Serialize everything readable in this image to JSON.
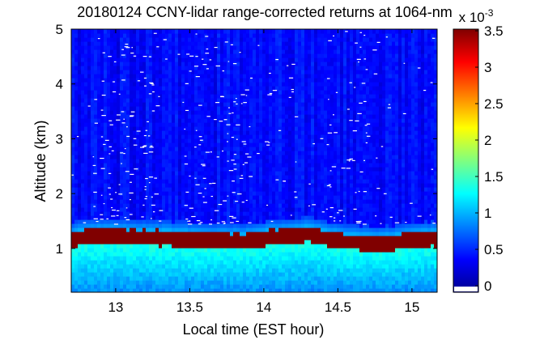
{
  "chart_data": {
    "type": "heatmap",
    "title": "20180124 CCNY-lidar range-corrected returns at 1064-nm",
    "xlabel": "Local time (EST hour)",
    "ylabel": "Altitude (km)",
    "xlim": [
      12.7,
      15.17
    ],
    "ylim": [
      0.2,
      5.0
    ],
    "xticks": [
      13,
      13.5,
      14,
      14.5,
      15
    ],
    "xtick_labels": [
      "13",
      "13.5",
      "14",
      "14.5",
      "15"
    ],
    "yticks": [
      1,
      2,
      3,
      4,
      5
    ],
    "ytick_labels": [
      "1",
      "2",
      "3",
      "4",
      "5"
    ],
    "colormap": "jet",
    "colorbar": {
      "min": 0,
      "max": 0.0035,
      "ticks": [
        0,
        0.5,
        1,
        1.5,
        2,
        2.5,
        3,
        3.5
      ],
      "tick_labels": [
        "0",
        "0.5",
        "1",
        "1.5",
        "2",
        "2.5",
        "3",
        "3.5"
      ],
      "multiplier_base": "x 10",
      "multiplier_exp": "-3"
    },
    "features": {
      "boundary_layer_top_km": [
        {
          "x": 12.7,
          "y": 1.18
        },
        {
          "x": 12.85,
          "y": 1.25
        },
        {
          "x": 13.2,
          "y": 1.22
        },
        {
          "x": 13.4,
          "y": 1.2
        },
        {
          "x": 13.6,
          "y": 1.17
        },
        {
          "x": 13.88,
          "y": 1.15
        },
        {
          "x": 14.05,
          "y": 1.22
        },
        {
          "x": 14.3,
          "y": 1.28
        },
        {
          "x": 14.5,
          "y": 1.16
        },
        {
          "x": 14.8,
          "y": 1.1
        },
        {
          "x": 15.0,
          "y": 1.17
        },
        {
          "x": 15.17,
          "y": 1.2
        }
      ]
    }
  }
}
